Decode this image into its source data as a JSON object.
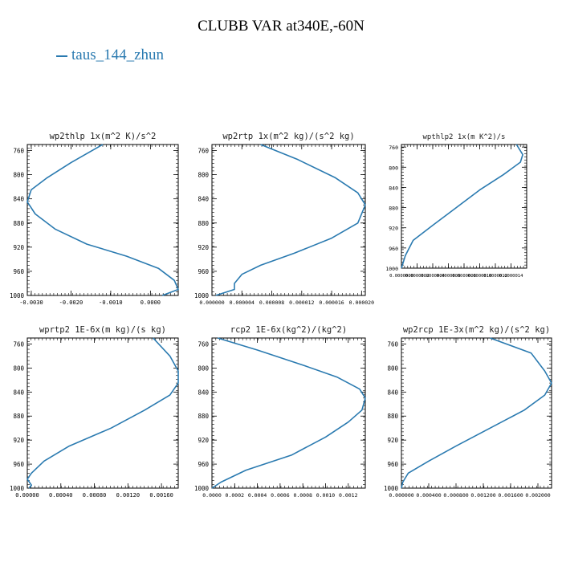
{
  "title": "CLUBB VAR at340E,-60N",
  "legend": {
    "label": "taus_144_zhun",
    "color": "#2a7ab0"
  },
  "chart_data": [
    {
      "type": "line",
      "title": "wp2thlp  1x(m^2 K)/s^2",
      "xlim": [
        -0.0031,
        0.0007
      ],
      "ylim": [
        1000,
        750
      ],
      "xticks": [
        -0.003,
        -0.002,
        -0.001,
        0.0
      ],
      "xtick_labels": [
        "-0.0030",
        "-0.0020",
        "-0.0010",
        "0.0000"
      ],
      "yticks": [
        760,
        800,
        840,
        880,
        920,
        960,
        1000
      ],
      "series": [
        {
          "x": [
            -0.0012,
            -0.002,
            -0.0026,
            -0.003,
            -0.0031,
            -0.0029,
            -0.0024,
            -0.0016,
            -0.0006,
            0.0002,
            0.0006,
            0.0007,
            0.0003
          ],
          "y": [
            750,
            780,
            805,
            825,
            845,
            865,
            890,
            915,
            935,
            955,
            975,
            990,
            1000
          ]
        }
      ]
    },
    {
      "type": "line",
      "title": "wp2rtp  1x(m^2 kg)/(s^2 kg)",
      "xlim": [
        0.0,
        2.05e-05
      ],
      "ylim": [
        1000,
        750
      ],
      "xticks": [
        0.0,
        4e-06,
        8e-06,
        1.2e-05,
        1.6e-05,
        2e-05
      ],
      "xtick_labels": [
        "0.000000",
        "0.000004",
        "0.000008",
        "0.000012",
        "0.000016",
        "0.000020"
      ],
      "yticks": [
        760,
        800,
        840,
        880,
        920,
        960,
        1000
      ],
      "series": [
        {
          "x": [
            6.5e-06,
            1.15e-05,
            1.65e-05,
            1.95e-05,
            2.05e-05,
            1.95e-05,
            1.6e-05,
            1.1e-05,
            6.5e-06,
            4e-06,
            3e-06,
            3e-06,
            5e-07
          ],
          "y": [
            750,
            775,
            805,
            830,
            850,
            880,
            905,
            930,
            950,
            965,
            980,
            990,
            1000
          ]
        }
      ]
    },
    {
      "type": "line",
      "title": "wpthlp2  1x(m K^2)/s",
      "xlim": [
        0.0,
        1.6e-06
      ],
      "ylim": [
        1000,
        755
      ],
      "xticks": [
        0.0,
        2e-07,
        4e-07,
        6e-07,
        8e-07,
        1e-06,
        1.2e-06,
        1.4e-06
      ],
      "xtick_labels": [
        "0.0000000",
        "0.0000002",
        "0.0000004",
        "0.0000006",
        "0.0000008",
        "0.0000010",
        "0.0000012",
        "0.0000014"
      ],
      "yticks": [
        760,
        800,
        840,
        880,
        920,
        960,
        1000
      ],
      "series": [
        {
          "x": [
            1.47e-06,
            1.55e-06,
            1.52e-06,
            1.3e-06,
            1e-06,
            7e-07,
            4e-07,
            1.5e-07,
            5e-08,
            0.0
          ],
          "y": [
            755,
            775,
            790,
            815,
            845,
            880,
            915,
            945,
            975,
            1000
          ]
        }
      ]
    },
    {
      "type": "line",
      "title": "wprtp2  1E-6x(m kg)/(s kg)",
      "xlim": [
        0.0,
        0.0018
      ],
      "ylim": [
        1000,
        750
      ],
      "xticks": [
        0.0,
        0.0004,
        0.0008,
        0.0012,
        0.0016
      ],
      "xtick_labels": [
        "0.00000",
        "0.00040",
        "0.00080",
        "0.00120",
        "0.00160"
      ],
      "yticks": [
        760,
        800,
        840,
        880,
        920,
        960,
        1000
      ],
      "series": [
        {
          "x": [
            0.0015,
            0.0017,
            0.0018,
            0.0018,
            0.0017,
            0.0014,
            0.001,
            0.0005,
            0.0002,
            5e-05,
            0.0,
            5e-05,
            2e-05
          ],
          "y": [
            750,
            780,
            805,
            825,
            845,
            870,
            900,
            930,
            955,
            975,
            985,
            995,
            1000
          ]
        }
      ]
    },
    {
      "type": "line",
      "title": "rcp2  1E-6x(kg^2)/(kg^2)",
      "xlim": [
        0.0,
        0.00135
      ],
      "ylim": [
        1000,
        750
      ],
      "xticks": [
        0.0,
        0.0002,
        0.0004,
        0.0006,
        0.0008,
        0.001,
        0.0012
      ],
      "xtick_labels": [
        "0.0000",
        "0.0002",
        "0.0004",
        "0.0006",
        "0.0008",
        "0.0010",
        "0.0012"
      ],
      "yticks": [
        760,
        800,
        840,
        880,
        920,
        960,
        1000
      ],
      "series": [
        {
          "x": [
            5e-05,
            0.0004,
            0.0008,
            0.0011,
            0.0013,
            0.00135,
            0.00132,
            0.0012,
            0.001,
            0.0007,
            0.0003,
            8e-05,
            0.0
          ],
          "y": [
            750,
            770,
            795,
            815,
            835,
            850,
            870,
            890,
            915,
            945,
            970,
            990,
            1000
          ]
        }
      ]
    },
    {
      "type": "line",
      "title": "wp2rcp  1E-3x(m^2 kg)/(s^2 kg)",
      "xlim": [
        0.0,
        0.0022
      ],
      "ylim": [
        1000,
        750
      ],
      "xticks": [
        0.0,
        0.0004,
        0.0008,
        0.0012,
        0.0016,
        0.002
      ],
      "xtick_labels": [
        "0.000000",
        "0.000400",
        "0.000800",
        "0.001200",
        "0.001600",
        "0.002000"
      ],
      "yticks": [
        760,
        800,
        840,
        880,
        920,
        960,
        1000
      ],
      "series": [
        {
          "x": [
            0.0013,
            0.0019,
            0.0021,
            0.0022,
            0.0021,
            0.0018,
            0.0013,
            0.0008,
            0.0004,
            0.0001,
            2e-05,
            0.0
          ],
          "y": [
            750,
            775,
            805,
            825,
            845,
            870,
            900,
            930,
            955,
            975,
            990,
            1000
          ]
        }
      ]
    }
  ]
}
